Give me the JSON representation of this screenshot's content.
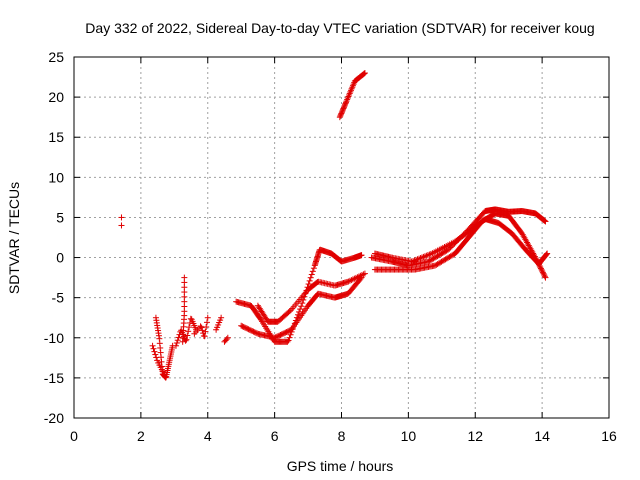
{
  "chart_data": {
    "type": "scatter",
    "title": "Day 332 of 2022, Sidereal Day-to-day VTEC variation (SDTVAR) for receiver koug",
    "xlabel": "GPS time / hours",
    "ylabel": "SDTVAR / TECUs",
    "xlim": [
      0,
      16
    ],
    "ylim": [
      -20,
      25
    ],
    "xticks": [
      0,
      2,
      4,
      6,
      8,
      10,
      12,
      14,
      16
    ],
    "yticks": [
      -20,
      -15,
      -10,
      -5,
      0,
      5,
      10,
      15,
      20,
      25
    ],
    "grid": true,
    "marker": "+",
    "color": "#e00000",
    "series_paths": [
      {
        "name": "isolated-early",
        "x": [
          1.42,
          1.42
        ],
        "y": [
          5.0,
          4.0
        ],
        "n": 2
      },
      {
        "name": "v-dip",
        "x": [
          2.45,
          2.55,
          2.65,
          2.75,
          2.85,
          2.95
        ],
        "y": [
          -7.5,
          -10.0,
          -14.5,
          -15.0,
          -13.0,
          -11.0
        ],
        "n": 40
      },
      {
        "name": "dip-left-arm",
        "x": [
          2.35,
          2.5,
          2.7
        ],
        "y": [
          -11.0,
          -13.0,
          -14.5
        ],
        "n": 12
      },
      {
        "name": "spike-3.3",
        "x": [
          3.3,
          3.3,
          3.25
        ],
        "y": [
          -2.5,
          -7.0,
          -10.5
        ],
        "n": 16
      },
      {
        "name": "cluster-3.2",
        "x": [
          3.05,
          3.2,
          3.35,
          3.5,
          3.65
        ],
        "y": [
          -11.0,
          -9.0,
          -10.5,
          -7.5,
          -9.0
        ],
        "n": 24
      },
      {
        "name": "cluster-3.8",
        "x": [
          3.6,
          3.8,
          3.9,
          4.0
        ],
        "y": [
          -9.5,
          -8.5,
          -10.0,
          -7.5
        ],
        "n": 14
      },
      {
        "name": "cluster-4.3",
        "x": [
          4.25,
          4.4
        ],
        "y": [
          -9.0,
          -7.5
        ],
        "n": 6
      },
      {
        "name": "cluster-4.55",
        "x": [
          4.5,
          4.6
        ],
        "y": [
          -10.5,
          -10.0
        ],
        "n": 4
      },
      {
        "name": "band-upper",
        "x": [
          4.85,
          5.3,
          5.6,
          6.0,
          6.4,
          6.8,
          7.2,
          7.35,
          7.7,
          8.0,
          8.4,
          8.6
        ],
        "y": [
          -5.5,
          -6.0,
          -7.8,
          -10.5,
          -10.5,
          -6.0,
          -1.0,
          1.0,
          0.5,
          -0.5,
          0.0,
          0.3
        ],
        "n": 140
      },
      {
        "name": "band-lower",
        "x": [
          5.0,
          5.5,
          6.0,
          6.5,
          7.0,
          7.3,
          7.8,
          8.2,
          8.6
        ],
        "y": [
          -8.5,
          -9.5,
          -10.0,
          -9.0,
          -6.0,
          -4.5,
          -5.0,
          -4.5,
          -2.5
        ],
        "n": 110
      },
      {
        "name": "band-middle",
        "x": [
          5.5,
          5.8,
          6.1,
          6.5,
          7.0,
          7.3,
          7.8,
          8.2,
          8.7
        ],
        "y": [
          -6.0,
          -8.0,
          -8.0,
          -6.5,
          -4.0,
          -3.0,
          -3.5,
          -3.0,
          -2.0
        ],
        "n": 90
      },
      {
        "name": "high-cluster",
        "x": [
          7.95,
          8.15,
          8.4,
          8.7
        ],
        "y": [
          17.5,
          19.5,
          22.0,
          23.0
        ],
        "n": 40
      },
      {
        "name": "band-right-a",
        "x": [
          8.9,
          9.5,
          10.0,
          10.6,
          11.2,
          11.8,
          12.3,
          12.6,
          13.0,
          13.4,
          13.8,
          14.1
        ],
        "y": [
          0.0,
          -0.5,
          -1.0,
          -0.5,
          1.0,
          3.5,
          5.8,
          6.0,
          5.7,
          5.8,
          5.5,
          4.5
        ],
        "n": 170
      },
      {
        "name": "band-right-b",
        "x": [
          9.0,
          9.6,
          10.2,
          10.8,
          11.4,
          11.8,
          12.2,
          12.6,
          13.0,
          13.4,
          13.8,
          14.1
        ],
        "y": [
          -1.5,
          -1.5,
          -1.5,
          -1.0,
          0.5,
          2.5,
          4.5,
          5.5,
          5.2,
          3.0,
          0.0,
          -2.5
        ],
        "n": 170
      },
      {
        "name": "band-right-c",
        "x": [
          9.0,
          9.5,
          10.1,
          10.7,
          11.4,
          11.9,
          12.3,
          12.7,
          13.1,
          13.5,
          13.9,
          14.15
        ],
        "y": [
          0.5,
          0.0,
          -0.5,
          0.5,
          2.0,
          3.5,
          4.8,
          4.3,
          3.0,
          1.0,
          -0.8,
          0.5
        ],
        "n": 150
      }
    ]
  }
}
